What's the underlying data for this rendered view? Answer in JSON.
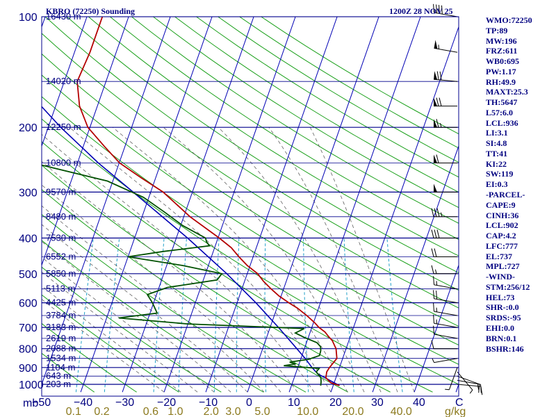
{
  "header": {
    "station": "KBRO (72250) Sounding",
    "time": "1200Z 28 NOV 25"
  },
  "colors": {
    "isobar": "#00008c",
    "isotherm": "#0000b4",
    "dry_adiabat": "#1aa01a",
    "moist_adiabat": "#606060",
    "mixing_ratio": "#20a0c8",
    "temperature": "#b40000",
    "dewpoint": "#005000",
    "parcel": "#0000b4",
    "wind_barb": "#000000",
    "stats_text": "#000080",
    "mixing_label": "#8c7a1e"
  },
  "chart_data": {
    "type": "skew-t",
    "ylabel": "mb",
    "xunit": "C",
    "mixing_unit": "g/kg",
    "pressure_ticks": [
      100,
      200,
      300,
      400,
      500,
      600,
      700,
      800,
      900,
      1000
    ],
    "ylim_mb": [
      1050,
      100
    ],
    "temperature_ticks": [
      -50,
      -40,
      -30,
      -20,
      -10,
      0,
      10,
      20,
      30,
      40
    ],
    "mixing_ratio_ticks": [
      "0.1",
      "0.2",
      "0.6",
      "1.0",
      "2.0",
      "3.0",
      "5.0",
      "10.0",
      "20.0",
      "40.0"
    ],
    "height_labels": [
      {
        "p": 100,
        "label": "16430 m"
      },
      {
        "p": 150,
        "label": "14020 m"
      },
      {
        "p": 200,
        "label": "12250 m"
      },
      {
        "p": 250,
        "label": "10800 m"
      },
      {
        "p": 300,
        "label": "9570 m"
      },
      {
        "p": 350,
        "label": "8480 m"
      },
      {
        "p": 400,
        "label": "7530 m"
      },
      {
        "p": 450,
        "label": "6552 m"
      },
      {
        "p": 500,
        "label": "5850 m"
      },
      {
        "p": 550,
        "label": "5113 m"
      },
      {
        "p": 600,
        "label": "4425 m"
      },
      {
        "p": 650,
        "label": "3784 m"
      },
      {
        "p": 700,
        "label": "3183 m"
      },
      {
        "p": 750,
        "label": "2619 m"
      },
      {
        "p": 800,
        "label": "2088 m"
      },
      {
        "p": 850,
        "label": "1534 m"
      },
      {
        "p": 900,
        "label": "1104 m"
      },
      {
        "p": 950,
        "label": "643 m"
      },
      {
        "p": 1000,
        "label": "203 m"
      }
    ],
    "temperature_profile": [
      {
        "p": 1008,
        "t": 21.5
      },
      {
        "p": 990,
        "t": 19.2
      },
      {
        "p": 960,
        "t": 17.6
      },
      {
        "p": 925,
        "t": 17.3
      },
      {
        "p": 900,
        "t": 17.6
      },
      {
        "p": 870,
        "t": 18.2
      },
      {
        "p": 850,
        "t": 18.6
      },
      {
        "p": 820,
        "t": 18.0
      },
      {
        "p": 800,
        "t": 17.6
      },
      {
        "p": 780,
        "t": 16.8
      },
      {
        "p": 760,
        "t": 16.0
      },
      {
        "p": 740,
        "t": 14.7
      },
      {
        "p": 720,
        "t": 13.5
      },
      {
        "p": 700,
        "t": 11.7
      },
      {
        "p": 680,
        "t": 10.3
      },
      {
        "p": 650,
        "t": 7.8
      },
      {
        "p": 620,
        "t": 4.9
      },
      {
        "p": 600,
        "t": 2.4
      },
      {
        "p": 575,
        "t": -0.5
      },
      {
        "p": 550,
        "t": -3.0
      },
      {
        "p": 525,
        "t": -5.4
      },
      {
        "p": 500,
        "t": -7.5
      },
      {
        "p": 475,
        "t": -10.7
      },
      {
        "p": 450,
        "t": -13.4
      },
      {
        "p": 425,
        "t": -16.0
      },
      {
        "p": 400,
        "t": -19.7
      },
      {
        "p": 350,
        "t": -28.5
      },
      {
        "p": 300,
        "t": -37.0
      },
      {
        "p": 275,
        "t": -43.3
      },
      {
        "p": 250,
        "t": -49.9
      },
      {
        "p": 225,
        "t": -55.0
      },
      {
        "p": 200,
        "t": -60.5
      },
      {
        "p": 175,
        "t": -64.3
      },
      {
        "p": 150,
        "t": -66.9
      },
      {
        "p": 125,
        "t": -66.3
      },
      {
        "p": 100,
        "t": -66.3
      }
    ],
    "dewpoint_profile": [
      {
        "p": 1008,
        "t": 17.0
      },
      {
        "p": 985,
        "t": 16.8
      },
      {
        "p": 960,
        "t": 16.4
      },
      {
        "p": 925,
        "t": 14.8
      },
      {
        "p": 905,
        "t": 15.2
      },
      {
        "p": 890,
        "t": 6.5
      },
      {
        "p": 880,
        "t": 9.2
      },
      {
        "p": 870,
        "t": 7.6
      },
      {
        "p": 855,
        "t": 11.9
      },
      {
        "p": 835,
        "t": 14.2
      },
      {
        "p": 810,
        "t": 14.1
      },
      {
        "p": 790,
        "t": 13.7
      },
      {
        "p": 770,
        "t": 12.5
      },
      {
        "p": 745,
        "t": 9.0
      },
      {
        "p": 725,
        "t": 6.5
      },
      {
        "p": 705,
        "t": 8.3
      },
      {
        "p": 685,
        "t": -20.0
      },
      {
        "p": 660,
        "t": -37.1
      },
      {
        "p": 640,
        "t": -28.3
      },
      {
        "p": 600,
        "t": -30.3
      },
      {
        "p": 570,
        "t": -32.2
      },
      {
        "p": 545,
        "t": -28.0
      },
      {
        "p": 520,
        "t": -16.7
      },
      {
        "p": 500,
        "t": -16.1
      },
      {
        "p": 475,
        "t": -26.2
      },
      {
        "p": 450,
        "t": -40.0
      },
      {
        "p": 435,
        "t": -32.0
      },
      {
        "p": 420,
        "t": -21.4
      },
      {
        "p": 410,
        "t": -22.4
      },
      {
        "p": 400,
        "t": -23.0
      },
      {
        "p": 370,
        "t": -29.5
      },
      {
        "p": 340,
        "t": -35.0
      },
      {
        "p": 310,
        "t": -41.3
      },
      {
        "p": 280,
        "t": -51.3
      },
      {
        "p": 250,
        "t": -70.7
      },
      {
        "p": 225,
        "t": -71.5
      },
      {
        "p": 200,
        "t": -73.2
      },
      {
        "p": 175,
        "t": -77.2
      },
      {
        "p": 150,
        "t": -82.1
      },
      {
        "p": 125,
        "t": -86.0
      },
      {
        "p": 100,
        "t": -88.1
      }
    ],
    "parcel_profile": [
      {
        "p": 1008,
        "t": 21.5
      },
      {
        "p": 936,
        "t": 15.3
      },
      {
        "p": 900,
        "t": 13.4
      },
      {
        "p": 850,
        "t": 11.0
      },
      {
        "p": 800,
        "t": 8.2
      },
      {
        "p": 700,
        "t": 2.0
      },
      {
        "p": 600,
        "t": -5.5
      },
      {
        "p": 500,
        "t": -14.9
      },
      {
        "p": 400,
        "t": -27.3
      },
      {
        "p": 300,
        "t": -44.2
      },
      {
        "p": 250,
        "t": -55.0
      },
      {
        "p": 200,
        "t": -67.0
      },
      {
        "p": 150,
        "t": -81.0
      },
      {
        "p": 130,
        "t": -87.2
      }
    ],
    "wind_barbs": [
      {
        "p": 1000,
        "dir": 95,
        "kt": 15
      },
      {
        "p": 975,
        "dir": 100,
        "kt": 15
      },
      {
        "p": 950,
        "dir": 110,
        "kt": 10
      },
      {
        "p": 925,
        "dir": 140,
        "kt": 5
      },
      {
        "p": 900,
        "dir": 200,
        "kt": 5
      },
      {
        "p": 850,
        "dir": 260,
        "kt": 5
      },
      {
        "p": 800,
        "dir": 270,
        "kt": 10
      },
      {
        "p": 750,
        "dir": 280,
        "kt": 10
      },
      {
        "p": 700,
        "dir": 280,
        "kt": 15
      },
      {
        "p": 650,
        "dir": 280,
        "kt": 15
      },
      {
        "p": 600,
        "dir": 280,
        "kt": 20
      },
      {
        "p": 550,
        "dir": 280,
        "kt": 15
      },
      {
        "p": 500,
        "dir": 270,
        "kt": 15
      },
      {
        "p": 450,
        "dir": 270,
        "kt": 20
      },
      {
        "p": 400,
        "dir": 270,
        "kt": 30
      },
      {
        "p": 350,
        "dir": 270,
        "kt": 35
      },
      {
        "p": 300,
        "dir": 270,
        "kt": 50
      },
      {
        "p": 250,
        "dir": 270,
        "kt": 60
      },
      {
        "p": 200,
        "dir": 270,
        "kt": 65
      },
      {
        "p": 175,
        "dir": 270,
        "kt": 70
      },
      {
        "p": 150,
        "dir": 275,
        "kt": 70
      },
      {
        "p": 125,
        "dir": 280,
        "kt": 55
      },
      {
        "p": 100,
        "dir": 280,
        "kt": 40
      }
    ]
  },
  "stats": [
    "WMO:72250",
    "TP:89",
    "MW:196",
    "FRZ:611",
    "WB0:695",
    "PW:1.17",
    "RH:49.9",
    "MAXT:25.3",
    "TH:5647",
    "L57:6.0",
    "LCL:936",
    "LI:3.1",
    "SI:4.8",
    "TT:41",
    "KI:22",
    "SW:119",
    "EI:0.3",
    "-PARCEL-",
    "CAPE:9",
    "CINH:36",
    "LCL:902",
    "CAP:4.2",
    "LFC:777",
    "EL:737",
    "MPL:727",
    "-WIND-",
    "STM:256/12",
    "HEL:73",
    "SHR-:0.0",
    "SRDS:-95",
    "EHI:0.0",
    "BRN:0.1",
    "BSHR:146"
  ]
}
